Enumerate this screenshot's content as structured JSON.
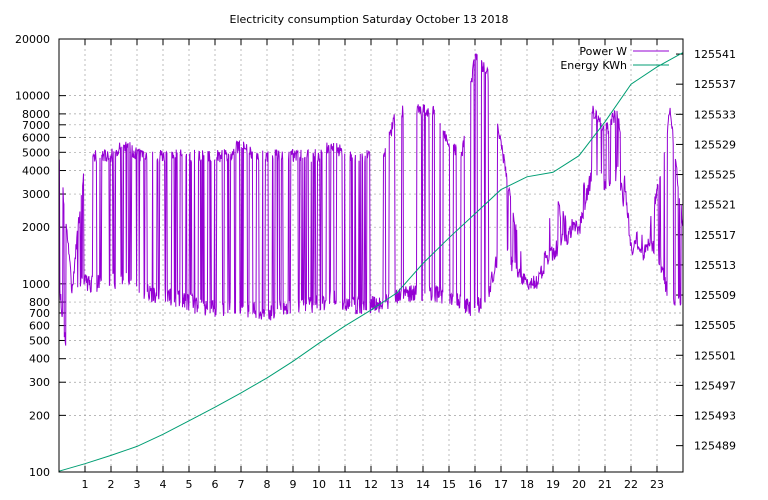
{
  "chart_data": {
    "type": "line",
    "title": "Electricity consumption Saturday October 13 2018",
    "xlabel": "",
    "ylabel": "",
    "y2label": "",
    "x_ticks": [
      1,
      2,
      3,
      4,
      5,
      6,
      7,
      8,
      9,
      10,
      11,
      12,
      13,
      14,
      15,
      16,
      17,
      18,
      19,
      20,
      21,
      22,
      23
    ],
    "xlim": [
      0,
      24
    ],
    "yscale": "log",
    "ylim": [
      100,
      20000
    ],
    "y_ticks": [
      100,
      200,
      300,
      400,
      500,
      600,
      700,
      800,
      1000,
      2000,
      3000,
      4000,
      5000,
      6000,
      7000,
      8000,
      10000,
      20000
    ],
    "y2lim": [
      125485.5,
      125543
    ],
    "y2_ticks": [
      125489,
      125493,
      125497,
      125501,
      125505,
      125509,
      125513,
      125517,
      125521,
      125525,
      125529,
      125533,
      125537,
      125541
    ],
    "grid": true,
    "legend_position": "top-right",
    "series": [
      {
        "name": "Power W",
        "axis": "y",
        "color": "#9400d3",
        "envelope": [
          {
            "x": 0.0,
            "low": 950,
            "high": 5200
          },
          {
            "x": 0.3,
            "low": 350,
            "high": 2100
          },
          {
            "x": 0.5,
            "low": 990,
            "high": 1000
          },
          {
            "x": 1.0,
            "low": 900,
            "high": 5200
          },
          {
            "x": 1.5,
            "low": 900,
            "high": 5200
          },
          {
            "x": 2.0,
            "low": 930,
            "high": 5200
          },
          {
            "x": 2.5,
            "low": 950,
            "high": 6000
          },
          {
            "x": 3.0,
            "low": 820,
            "high": 5300
          },
          {
            "x": 3.5,
            "low": 800,
            "high": 5200
          },
          {
            "x": 4.0,
            "low": 780,
            "high": 5200
          },
          {
            "x": 4.5,
            "low": 750,
            "high": 5200
          },
          {
            "x": 5.0,
            "low": 720,
            "high": 5200
          },
          {
            "x": 5.5,
            "low": 660,
            "high": 5200
          },
          {
            "x": 6.0,
            "low": 650,
            "high": 5200
          },
          {
            "x": 6.5,
            "low": 680,
            "high": 5200
          },
          {
            "x": 7.0,
            "low": 690,
            "high": 6000
          },
          {
            "x": 7.5,
            "low": 640,
            "high": 5200
          },
          {
            "x": 8.0,
            "low": 620,
            "high": 5200
          },
          {
            "x": 8.5,
            "low": 680,
            "high": 5200
          },
          {
            "x": 9.0,
            "low": 680,
            "high": 5200
          },
          {
            "x": 9.5,
            "low": 700,
            "high": 5200
          },
          {
            "x": 10.0,
            "low": 700,
            "high": 5200
          },
          {
            "x": 10.5,
            "low": 750,
            "high": 6000
          },
          {
            "x": 11.0,
            "low": 700,
            "high": 5200
          },
          {
            "x": 11.5,
            "low": 680,
            "high": 5200
          },
          {
            "x": 12.0,
            "low": 690,
            "high": 5200
          },
          {
            "x": 12.5,
            "low": 700,
            "high": 5200
          },
          {
            "x": 13.0,
            "low": 750,
            "high": 9000
          },
          {
            "x": 13.5,
            "low": 800,
            "high": 9000
          },
          {
            "x": 14.0,
            "low": 800,
            "high": 9000
          },
          {
            "x": 14.5,
            "low": 800,
            "high": 9000
          },
          {
            "x": 15.0,
            "low": 750,
            "high": 6000
          },
          {
            "x": 15.5,
            "low": 700,
            "high": 5200
          },
          {
            "x": 16.0,
            "low": 660,
            "high": 18000
          },
          {
            "x": 16.5,
            "low": 800,
            "high": 14000
          },
          {
            "x": 17.0,
            "low": 1400,
            "high": 6000
          },
          {
            "x": 17.5,
            "low": 1100,
            "high": 2400
          },
          {
            "x": 18.0,
            "low": 900,
            "high": 1100
          },
          {
            "x": 18.5,
            "low": 1000,
            "high": 1100
          },
          {
            "x": 19.0,
            "low": 1300,
            "high": 3000
          },
          {
            "x": 19.5,
            "low": 1600,
            "high": 2400
          },
          {
            "x": 20.0,
            "low": 1700,
            "high": 2100
          },
          {
            "x": 20.5,
            "low": 3500,
            "high": 9000
          },
          {
            "x": 21.0,
            "low": 3000,
            "high": 7000
          },
          {
            "x": 21.5,
            "low": 3500,
            "high": 9000
          },
          {
            "x": 22.0,
            "low": 1600,
            "high": 1700
          },
          {
            "x": 22.5,
            "low": 1500,
            "high": 1550
          },
          {
            "x": 23.0,
            "low": 1400,
            "high": 3300
          },
          {
            "x": 23.5,
            "low": 700,
            "high": 9000
          },
          {
            "x": 24.0,
            "low": 700,
            "high": 2200
          }
        ]
      },
      {
        "name": "Energy KWh",
        "axis": "y2",
        "color": "#009e73",
        "points": [
          [
            0.0,
            125485.6
          ],
          [
            1.0,
            125486.6
          ],
          [
            2.0,
            125487.7
          ],
          [
            3.0,
            125488.9
          ],
          [
            4.0,
            125490.5
          ],
          [
            5.0,
            125492.3
          ],
          [
            6.0,
            125494.1
          ],
          [
            7.0,
            125496.0
          ],
          [
            8.0,
            125498.0
          ],
          [
            9.0,
            125500.2
          ],
          [
            10.0,
            125502.6
          ],
          [
            11.0,
            125504.9
          ],
          [
            12.0,
            125507.0
          ],
          [
            13.0,
            125509.3
          ],
          [
            14.0,
            125513.2
          ],
          [
            15.0,
            125516.6
          ],
          [
            16.0,
            125519.8
          ],
          [
            17.0,
            125523.0
          ],
          [
            18.0,
            125524.7
          ],
          [
            19.0,
            125525.3
          ],
          [
            20.0,
            125527.5
          ],
          [
            21.0,
            125532.0
          ],
          [
            22.0,
            125537.0
          ],
          [
            23.0,
            125539.3
          ],
          [
            24.0,
            125541.2
          ]
        ]
      }
    ]
  }
}
